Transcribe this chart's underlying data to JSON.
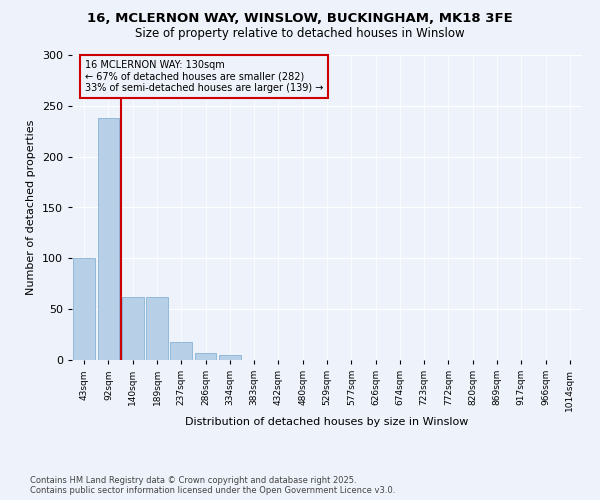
{
  "title_line1": "16, MCLERNON WAY, WINSLOW, BUCKINGHAM, MK18 3FE",
  "title_line2": "Size of property relative to detached houses in Winslow",
  "xlabel": "Distribution of detached houses by size in Winslow",
  "ylabel": "Number of detached properties",
  "background_color": "#eef2fa",
  "bar_color": "#b8cfe8",
  "bar_edge_color": "#7aaad0",
  "vline_color": "#cc0000",
  "vline_x_index": 2,
  "annotation_box_color": "#cc0000",
  "annotation_text": "16 MCLERNON WAY: 130sqm\n← 67% of detached houses are smaller (282)\n33% of semi-detached houses are larger (139) →",
  "categories": [
    "43sqm",
    "92sqm",
    "140sqm",
    "189sqm",
    "237sqm",
    "286sqm",
    "334sqm",
    "383sqm",
    "432sqm",
    "480sqm",
    "529sqm",
    "577sqm",
    "626sqm",
    "674sqm",
    "723sqm",
    "772sqm",
    "820sqm",
    "869sqm",
    "917sqm",
    "966sqm",
    "1014sqm"
  ],
  "values": [
    100,
    238,
    62,
    62,
    18,
    7,
    5,
    0,
    0,
    0,
    0,
    0,
    0,
    0,
    0,
    0,
    0,
    0,
    0,
    0,
    0
  ],
  "ylim": [
    0,
    300
  ],
  "yticks": [
    0,
    50,
    100,
    150,
    200,
    250,
    300
  ],
  "footnote_line1": "Contains HM Land Registry data © Crown copyright and database right 2025.",
  "footnote_line2": "Contains public sector information licensed under the Open Government Licence v3.0."
}
